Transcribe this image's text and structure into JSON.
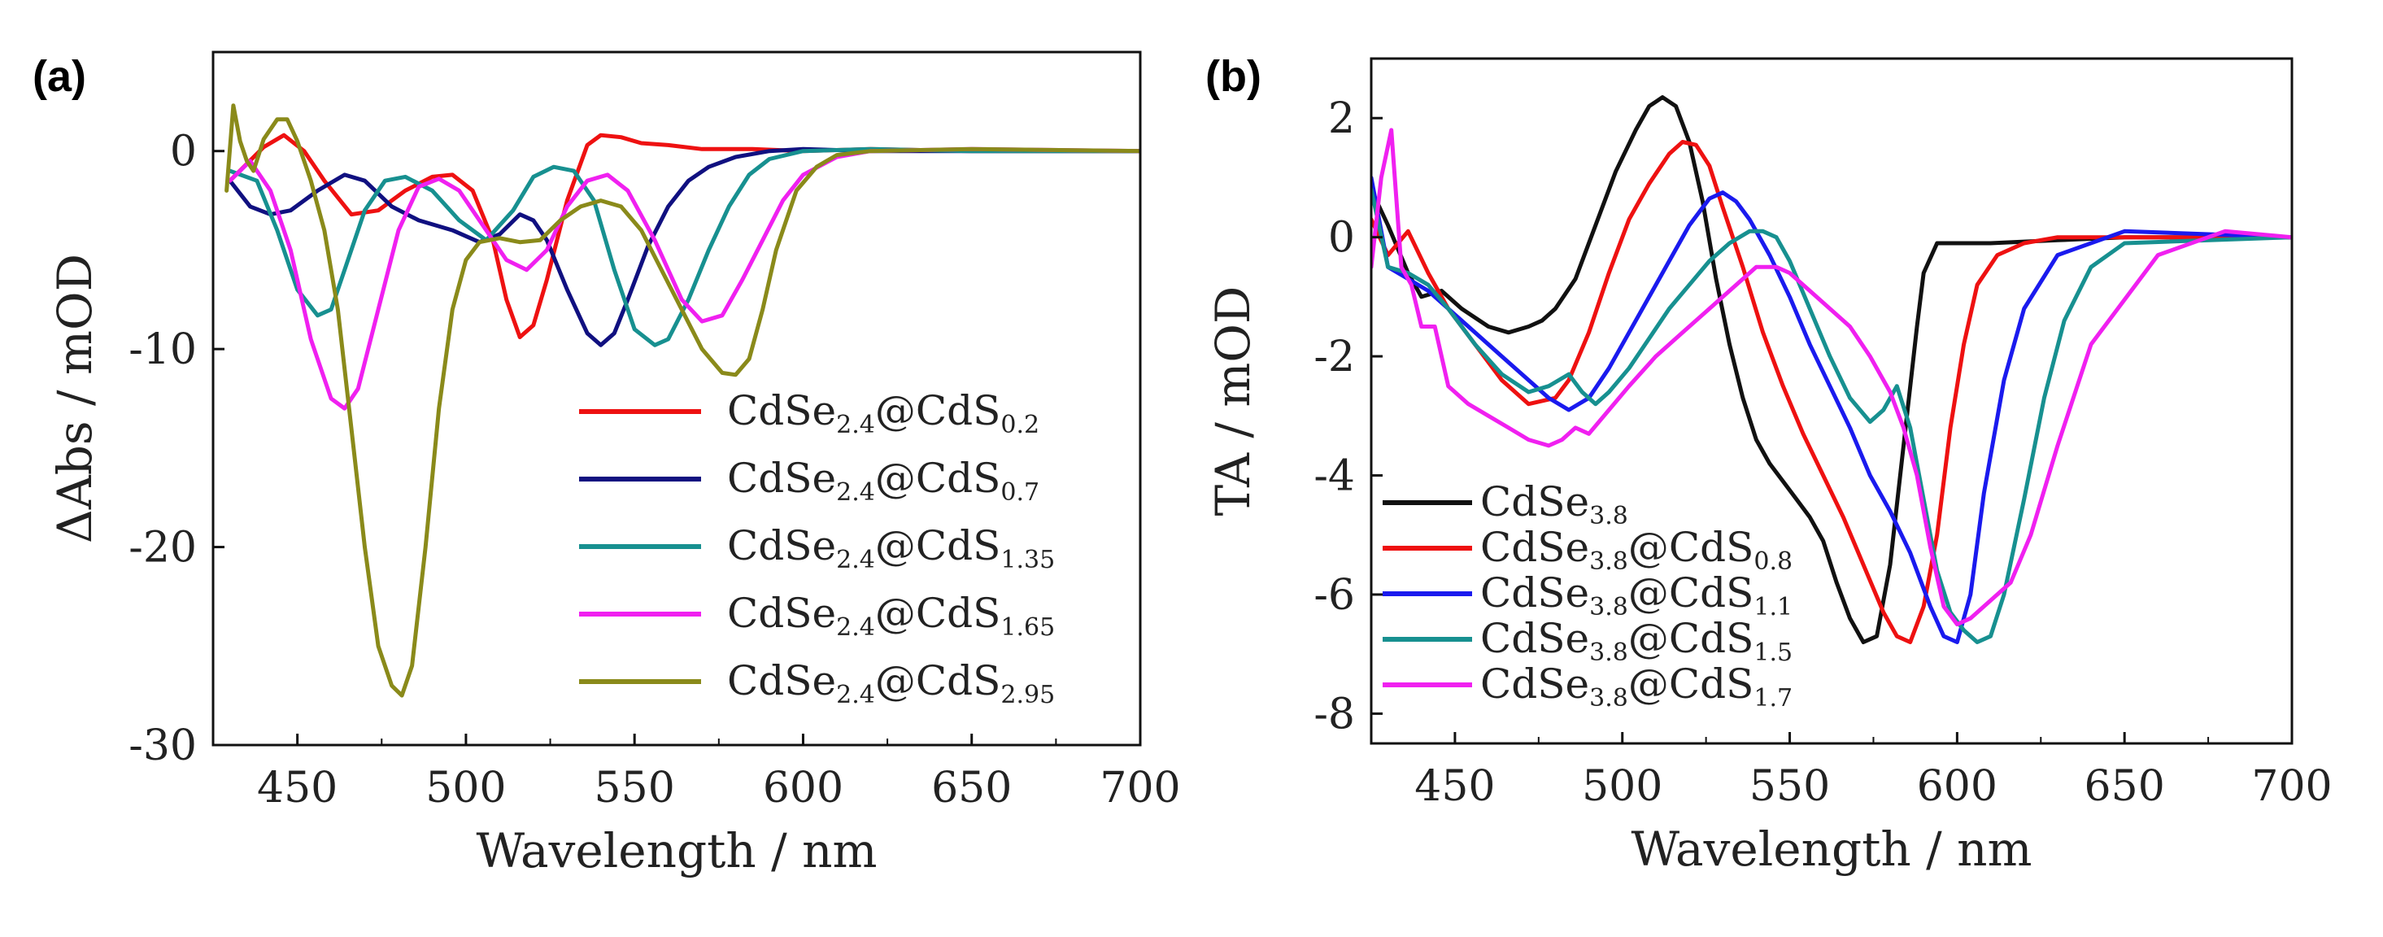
{
  "chart_data": [
    {
      "panel_label": "(a)",
      "type": "line",
      "xlabel": "Wavelength / nm",
      "ylabel": "ΔAbs / mOD",
      "xlim": [
        425,
        700
      ],
      "ylim": [
        -30,
        5
      ],
      "xticks": [
        450,
        500,
        550,
        600,
        650,
        700
      ],
      "yticks": [
        0,
        -10,
        -20,
        -30
      ],
      "legend_position": "lower-right",
      "series": [
        {
          "name": "CdSe2.4@CdS0.2",
          "label_main": "CdSe",
          "sub1": "2.4",
          "label_mid": "@CdS",
          "sub2": "0.2",
          "color": "#ee1111",
          "x": [
            430,
            440,
            446,
            452,
            458,
            466,
            474,
            482,
            490,
            496,
            502,
            508,
            512,
            516,
            520,
            524,
            530,
            536,
            540,
            546,
            552,
            560,
            570,
            585,
            600,
            620,
            650,
            700
          ],
          "y": [
            -1.5,
            0.2,
            0.8,
            0,
            -1.5,
            -3.2,
            -3.0,
            -2.0,
            -1.3,
            -1.2,
            -2.0,
            -4.5,
            -7.5,
            -9.4,
            -8.8,
            -6.5,
            -2.5,
            0.3,
            0.8,
            0.7,
            0.4,
            0.3,
            0.1,
            0.1,
            0,
            0.1,
            0,
            0
          ]
        },
        {
          "name": "CdSe2.4@CdS0.7",
          "label_main": "CdSe",
          "sub1": "2.4",
          "label_mid": "@CdS",
          "sub2": "0.7",
          "color": "#101080",
          "x": [
            430,
            436,
            442,
            448,
            456,
            464,
            470,
            478,
            486,
            496,
            504,
            510,
            516,
            520,
            524,
            530,
            536,
            540,
            544,
            548,
            554,
            560,
            566,
            572,
            580,
            590,
            600,
            620,
            650,
            700
          ],
          "y": [
            -1.5,
            -2.8,
            -3.2,
            -3.0,
            -2.0,
            -1.2,
            -1.5,
            -2.8,
            -3.5,
            -4.0,
            -4.6,
            -4.2,
            -3.2,
            -3.5,
            -4.5,
            -7.0,
            -9.2,
            -9.8,
            -9.2,
            -7.5,
            -4.8,
            -2.8,
            -1.5,
            -0.8,
            -0.3,
            0,
            0.1,
            0,
            0,
            0
          ]
        },
        {
          "name": "CdSe2.4@CdS1.35",
          "label_main": "CdSe",
          "sub1": "2.4",
          "label_mid": "@CdS",
          "sub2": "1.35",
          "color": "#179090",
          "x": [
            430,
            438,
            444,
            450,
            456,
            460,
            464,
            470,
            476,
            482,
            490,
            498,
            506,
            514,
            520,
            526,
            532,
            538,
            544,
            550,
            556,
            560,
            566,
            572,
            578,
            584,
            590,
            600,
            620,
            650,
            700
          ],
          "y": [
            -1.0,
            -1.5,
            -4.0,
            -7.0,
            -8.3,
            -8.0,
            -6.0,
            -3.0,
            -1.5,
            -1.3,
            -2.0,
            -3.5,
            -4.5,
            -3.0,
            -1.3,
            -0.8,
            -1.0,
            -2.5,
            -6.0,
            -9.0,
            -9.8,
            -9.5,
            -7.5,
            -5.0,
            -2.8,
            -1.2,
            -0.4,
            0,
            0.1,
            0,
            0
          ]
        },
        {
          "name": "CdSe2.4@CdS1.65",
          "label_main": "CdSe",
          "sub1": "2.4",
          "label_mid": "@CdS",
          "sub2": "1.65",
          "color": "#f020f0",
          "x": [
            430,
            436,
            442,
            448,
            454,
            460,
            464,
            468,
            474,
            480,
            486,
            492,
            498,
            506,
            512,
            518,
            524,
            530,
            536,
            542,
            548,
            556,
            564,
            570,
            576,
            582,
            588,
            594,
            600,
            610,
            620,
            650,
            700
          ],
          "y": [
            -1.5,
            -0.5,
            -2.0,
            -5.0,
            -9.5,
            -12.5,
            -13.0,
            -12.0,
            -8.0,
            -4.0,
            -1.8,
            -1.4,
            -2.0,
            -4.0,
            -5.5,
            -6.0,
            -5.0,
            -2.8,
            -1.5,
            -1.2,
            -2.0,
            -4.5,
            -7.5,
            -8.6,
            -8.3,
            -6.5,
            -4.5,
            -2.5,
            -1.2,
            -0.3,
            0,
            0.1,
            0
          ]
        },
        {
          "name": "CdSe2.4@CdS2.95",
          "label_main": "CdSe",
          "sub1": "2.4",
          "label_mid": "@CdS",
          "sub2": "2.95",
          "color": "#8a8a1a",
          "x": [
            429,
            431,
            433,
            435,
            437,
            440,
            444,
            447,
            450,
            454,
            458,
            462,
            466,
            470,
            474,
            478,
            481,
            484,
            488,
            492,
            496,
            500,
            504,
            510,
            516,
            522,
            528,
            534,
            540,
            546,
            552,
            558,
            564,
            570,
            576,
            580,
            584,
            588,
            592,
            598,
            604,
            610,
            620,
            650,
            700
          ],
          "y": [
            -2.0,
            2.3,
            0.5,
            -0.5,
            -1.0,
            0.6,
            1.6,
            1.6,
            0.5,
            -1.5,
            -4.0,
            -8.0,
            -14.0,
            -20.0,
            -25.0,
            -27.0,
            -27.5,
            -26.0,
            -20.0,
            -13.0,
            -8.0,
            -5.5,
            -4.6,
            -4.4,
            -4.6,
            -4.5,
            -3.5,
            -2.8,
            -2.5,
            -2.8,
            -4.0,
            -6.0,
            -8.0,
            -10.0,
            -11.2,
            -11.3,
            -10.5,
            -8.0,
            -5.0,
            -2.0,
            -0.8,
            -0.2,
            0,
            0.1,
            0
          ]
        }
      ]
    },
    {
      "panel_label": "(b)",
      "type": "line",
      "xlabel": "Wavelength / nm",
      "ylabel": "TA / mOD",
      "xlim": [
        425,
        700
      ],
      "ylim": [
        -8.5,
        3
      ],
      "xticks": [
        450,
        500,
        550,
        600,
        650,
        700
      ],
      "yticks": [
        2,
        0,
        -2,
        -4,
        -6,
        -8
      ],
      "legend_position": "lower-left",
      "series": [
        {
          "name": "CdSe3.8",
          "label_main": "CdSe",
          "sub1": "3.8",
          "label_mid": "",
          "sub2": "",
          "color": "#111111",
          "x": [
            425,
            430,
            436,
            440,
            446,
            452,
            460,
            466,
            472,
            476,
            480,
            486,
            492,
            498,
            504,
            508,
            512,
            516,
            520,
            524,
            528,
            532,
            536,
            540,
            544,
            548,
            552,
            556,
            560,
            564,
            568,
            572,
            576,
            580,
            584,
            588,
            590,
            594,
            600,
            610,
            630,
            650,
            700
          ],
          "y": [
            0.8,
            0.2,
            -0.6,
            -1.0,
            -0.9,
            -1.2,
            -1.5,
            -1.6,
            -1.5,
            -1.4,
            -1.2,
            -0.7,
            0.2,
            1.1,
            1.8,
            2.2,
            2.35,
            2.2,
            1.6,
            0.6,
            -0.7,
            -1.8,
            -2.7,
            -3.4,
            -3.8,
            -4.1,
            -4.4,
            -4.7,
            -5.1,
            -5.8,
            -6.4,
            -6.8,
            -6.7,
            -5.5,
            -3.5,
            -1.5,
            -0.6,
            -0.1,
            -0.1,
            -0.1,
            -0.05,
            0,
            0
          ]
        },
        {
          "name": "CdSe3.8@CdS0.8",
          "label_main": "CdSe",
          "sub1": "3.8",
          "label_mid": "@CdS",
          "sub2": "0.8",
          "color": "#ee1111",
          "x": [
            425,
            430,
            436,
            442,
            448,
            456,
            464,
            472,
            480,
            484,
            490,
            496,
            502,
            508,
            514,
            518,
            522,
            526,
            530,
            536,
            542,
            548,
            554,
            560,
            566,
            572,
            578,
            582,
            586,
            590,
            594,
            598,
            602,
            606,
            612,
            620,
            630,
            650,
            700
          ],
          "y": [
            0.3,
            -0.3,
            0.1,
            -0.6,
            -1.2,
            -1.8,
            -2.4,
            -2.8,
            -2.7,
            -2.4,
            -1.6,
            -0.6,
            0.3,
            0.9,
            1.4,
            1.6,
            1.55,
            1.2,
            0.5,
            -0.5,
            -1.6,
            -2.5,
            -3.3,
            -4.0,
            -4.7,
            -5.5,
            -6.3,
            -6.7,
            -6.8,
            -6.2,
            -5.0,
            -3.2,
            -1.8,
            -0.8,
            -0.3,
            -0.1,
            0,
            0,
            0
          ]
        },
        {
          "name": "CdSe3.8@CdS1.1",
          "label_main": "CdSe",
          "sub1": "3.8",
          "label_mid": "@CdS",
          "sub2": "1.1",
          "color": "#1a1aee",
          "x": [
            425,
            430,
            436,
            442,
            448,
            456,
            464,
            472,
            478,
            484,
            490,
            496,
            502,
            508,
            514,
            520,
            526,
            530,
            534,
            538,
            544,
            550,
            556,
            562,
            568,
            574,
            580,
            586,
            592,
            596,
            600,
            604,
            608,
            614,
            620,
            630,
            650,
            700
          ],
          "y": [
            1.0,
            -0.5,
            -0.7,
            -0.9,
            -1.2,
            -1.6,
            -2.0,
            -2.4,
            -2.7,
            -2.9,
            -2.7,
            -2.2,
            -1.6,
            -1.0,
            -0.4,
            0.2,
            0.65,
            0.75,
            0.6,
            0.3,
            -0.3,
            -1.0,
            -1.8,
            -2.5,
            -3.2,
            -4.0,
            -4.6,
            -5.3,
            -6.2,
            -6.7,
            -6.8,
            -6.0,
            -4.3,
            -2.4,
            -1.2,
            -0.3,
            0.1,
            0
          ]
        },
        {
          "name": "CdSe3.8@CdS1.5",
          "label_main": "CdSe",
          "sub1": "3.8",
          "label_mid": "@CdS",
          "sub2": "1.5",
          "color": "#179090",
          "x": [
            425,
            430,
            436,
            442,
            448,
            456,
            464,
            472,
            478,
            484,
            488,
            492,
            496,
            502,
            508,
            514,
            520,
            526,
            532,
            538,
            542,
            546,
            550,
            556,
            562,
            568,
            574,
            578,
            582,
            586,
            590,
            594,
            598,
            602,
            606,
            610,
            614,
            620,
            626,
            632,
            640,
            650,
            700
          ],
          "y": [
            0.8,
            -0.5,
            -0.6,
            -0.8,
            -1.2,
            -1.8,
            -2.3,
            -2.6,
            -2.5,
            -2.3,
            -2.6,
            -2.8,
            -2.6,
            -2.2,
            -1.7,
            -1.2,
            -0.8,
            -0.4,
            -0.1,
            0.1,
            0.1,
            0,
            -0.4,
            -1.2,
            -2.0,
            -2.7,
            -3.1,
            -2.9,
            -2.5,
            -3.2,
            -4.4,
            -5.6,
            -6.3,
            -6.6,
            -6.8,
            -6.7,
            -6.0,
            -4.4,
            -2.7,
            -1.4,
            -0.5,
            -0.1,
            0
          ]
        },
        {
          "name": "CdSe3.8@CdS1.7",
          "label_main": "CdSe",
          "sub1": "3.8",
          "label_mid": "@CdS",
          "sub2": "1.7",
          "color": "#f020f0",
          "x": [
            425,
            428,
            431,
            434,
            437,
            440,
            444,
            448,
            454,
            460,
            466,
            472,
            478,
            482,
            486,
            490,
            496,
            502,
            510,
            518,
            526,
            534,
            540,
            546,
            550,
            556,
            562,
            568,
            574,
            580,
            584,
            588,
            592,
            596,
            600,
            604,
            610,
            616,
            622,
            630,
            640,
            660,
            680,
            700
          ],
          "y": [
            -0.5,
            1.0,
            1.8,
            -0.5,
            -0.8,
            -1.5,
            -1.5,
            -2.5,
            -2.8,
            -3.0,
            -3.2,
            -3.4,
            -3.5,
            -3.4,
            -3.2,
            -3.3,
            -2.9,
            -2.5,
            -2.0,
            -1.6,
            -1.2,
            -0.8,
            -0.5,
            -0.5,
            -0.6,
            -0.9,
            -1.2,
            -1.5,
            -2.0,
            -2.6,
            -3.2,
            -4.0,
            -5.2,
            -6.2,
            -6.5,
            -6.4,
            -6.1,
            -5.8,
            -5.0,
            -3.5,
            -1.8,
            -0.3,
            0.1,
            0
          ]
        }
      ]
    }
  ]
}
